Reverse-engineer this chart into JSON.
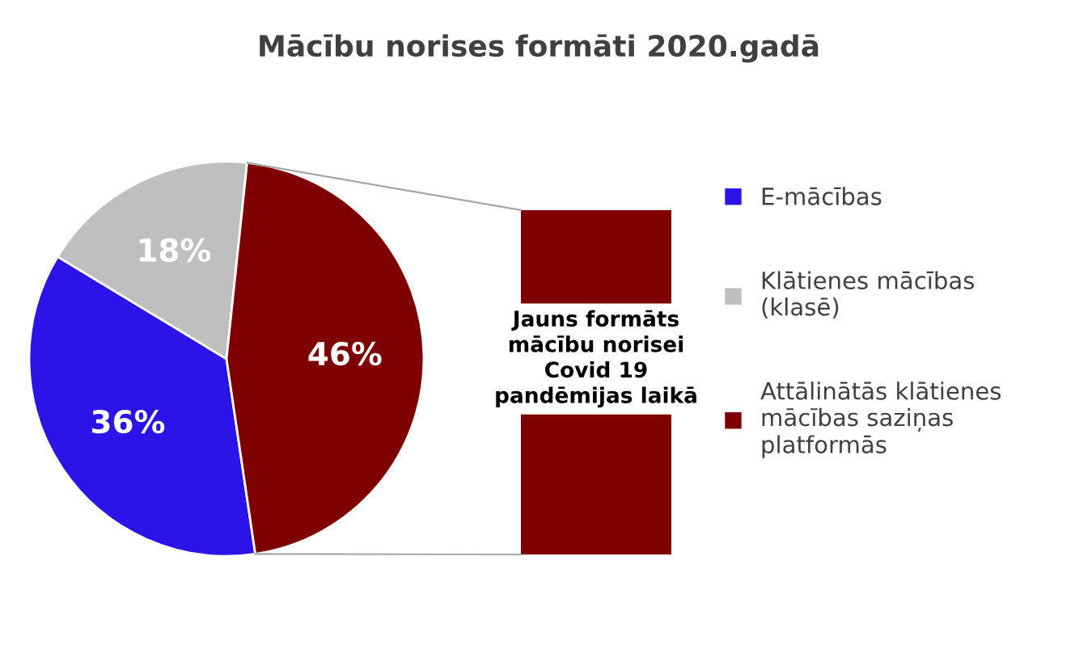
{
  "chart_data": {
    "type": "pie",
    "title": "Mācību norises formāti 2020.gadā",
    "categories": [
      "E-mācības",
      "Klātienes mācības (klasē)",
      "Attālinātās klātienes mācības saziņas platformās"
    ],
    "values": [
      36,
      18,
      46
    ],
    "value_labels": [
      "36%",
      "18%",
      "46%"
    ],
    "colors": [
      "#2a14e8",
      "#bfbfbf",
      "#7f0000"
    ],
    "legend": "right",
    "annotations": [
      "Jauns formāts mācību norisei Covid 19 pandēmijas laikā"
    ]
  }
}
